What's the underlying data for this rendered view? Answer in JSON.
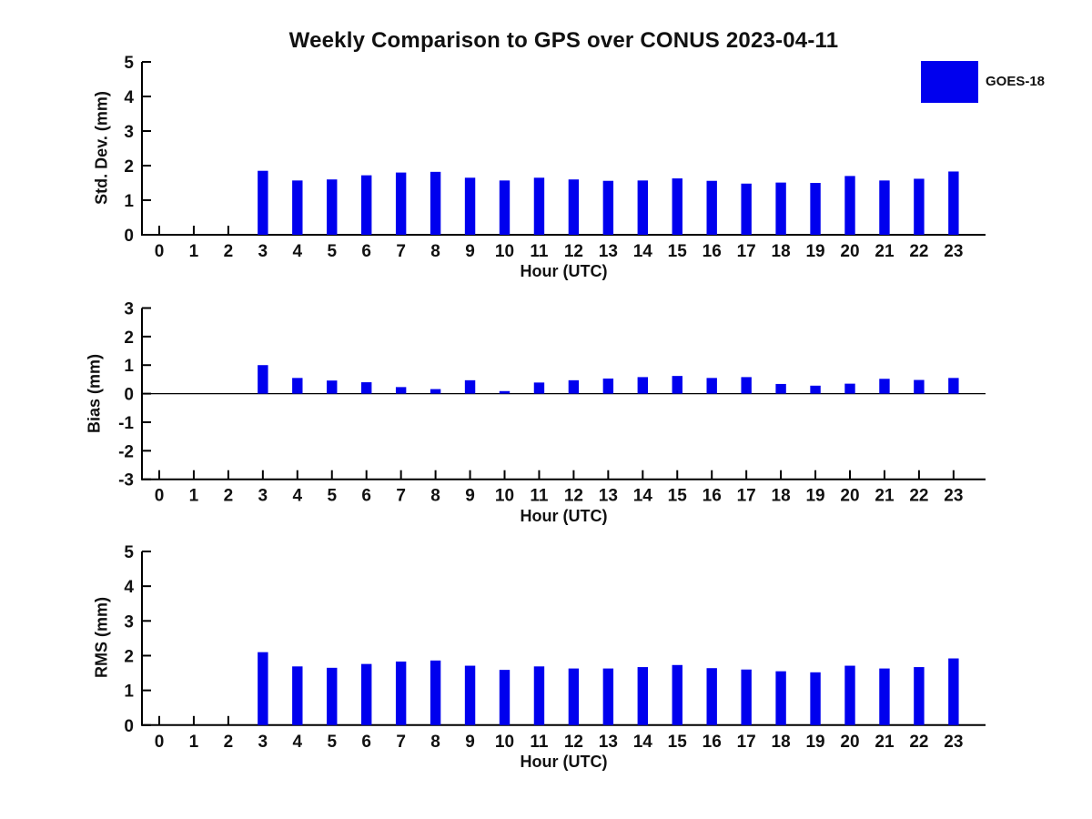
{
  "title": "Weekly Comparison to GPS over CONUS 2023-04-11",
  "legend": {
    "label": "GOES-18"
  },
  "colors": {
    "bar": "#0000EE",
    "axis": "#000000",
    "text": "#111111",
    "background": "#FFFFFF"
  },
  "chart_data": [
    {
      "type": "bar",
      "series_name": "GOES-18",
      "ylabel": "Std. Dev. (mm)",
      "xlabel": "Hour (UTC)",
      "categories": [
        "0",
        "1",
        "2",
        "3",
        "4",
        "5",
        "6",
        "7",
        "8",
        "9",
        "10",
        "11",
        "12",
        "13",
        "14",
        "15",
        "16",
        "17",
        "18",
        "19",
        "20",
        "21",
        "22",
        "23"
      ],
      "values": [
        null,
        null,
        null,
        1.85,
        1.57,
        1.6,
        1.72,
        1.8,
        1.82,
        1.65,
        1.57,
        1.65,
        1.6,
        1.56,
        1.57,
        1.63,
        1.56,
        1.48,
        1.51,
        1.5,
        1.7,
        1.57,
        1.62,
        1.83
      ],
      "ylim": [
        0,
        5
      ],
      "yticks": [
        0,
        1,
        2,
        3,
        4,
        5
      ],
      "grid": false,
      "note": "no data for hours 0-2"
    },
    {
      "type": "bar",
      "series_name": "GOES-18",
      "ylabel": "Bias (mm)",
      "xlabel": "Hour (UTC)",
      "categories": [
        "0",
        "1",
        "2",
        "3",
        "4",
        "5",
        "6",
        "7",
        "8",
        "9",
        "10",
        "11",
        "12",
        "13",
        "14",
        "15",
        "16",
        "17",
        "18",
        "19",
        "20",
        "21",
        "22",
        "23"
      ],
      "values": [
        null,
        null,
        null,
        1.0,
        0.55,
        0.46,
        0.4,
        0.23,
        0.16,
        0.47,
        0.09,
        0.39,
        0.47,
        0.53,
        0.58,
        0.62,
        0.55,
        0.58,
        0.34,
        0.28,
        0.35,
        0.52,
        0.48,
        0.55
      ],
      "ylim": [
        -3,
        3
      ],
      "yticks": [
        -3,
        -2,
        -1,
        0,
        1,
        2,
        3
      ],
      "grid": false,
      "note": "no data for hours 0-2"
    },
    {
      "type": "bar",
      "series_name": "GOES-18",
      "ylabel": "RMS (mm)",
      "xlabel": "Hour (UTC)",
      "categories": [
        "0",
        "1",
        "2",
        "3",
        "4",
        "5",
        "6",
        "7",
        "8",
        "9",
        "10",
        "11",
        "12",
        "13",
        "14",
        "15",
        "16",
        "17",
        "18",
        "19",
        "20",
        "21",
        "22",
        "23"
      ],
      "values": [
        null,
        null,
        null,
        2.1,
        1.69,
        1.65,
        1.76,
        1.83,
        1.86,
        1.71,
        1.59,
        1.69,
        1.63,
        1.63,
        1.67,
        1.73,
        1.64,
        1.6,
        1.55,
        1.52,
        1.71,
        1.63,
        1.67,
        1.92
      ],
      "ylim": [
        0,
        5
      ],
      "yticks": [
        0,
        1,
        2,
        3,
        4,
        5
      ],
      "grid": false,
      "note": "no data for hours 0-2"
    }
  ]
}
